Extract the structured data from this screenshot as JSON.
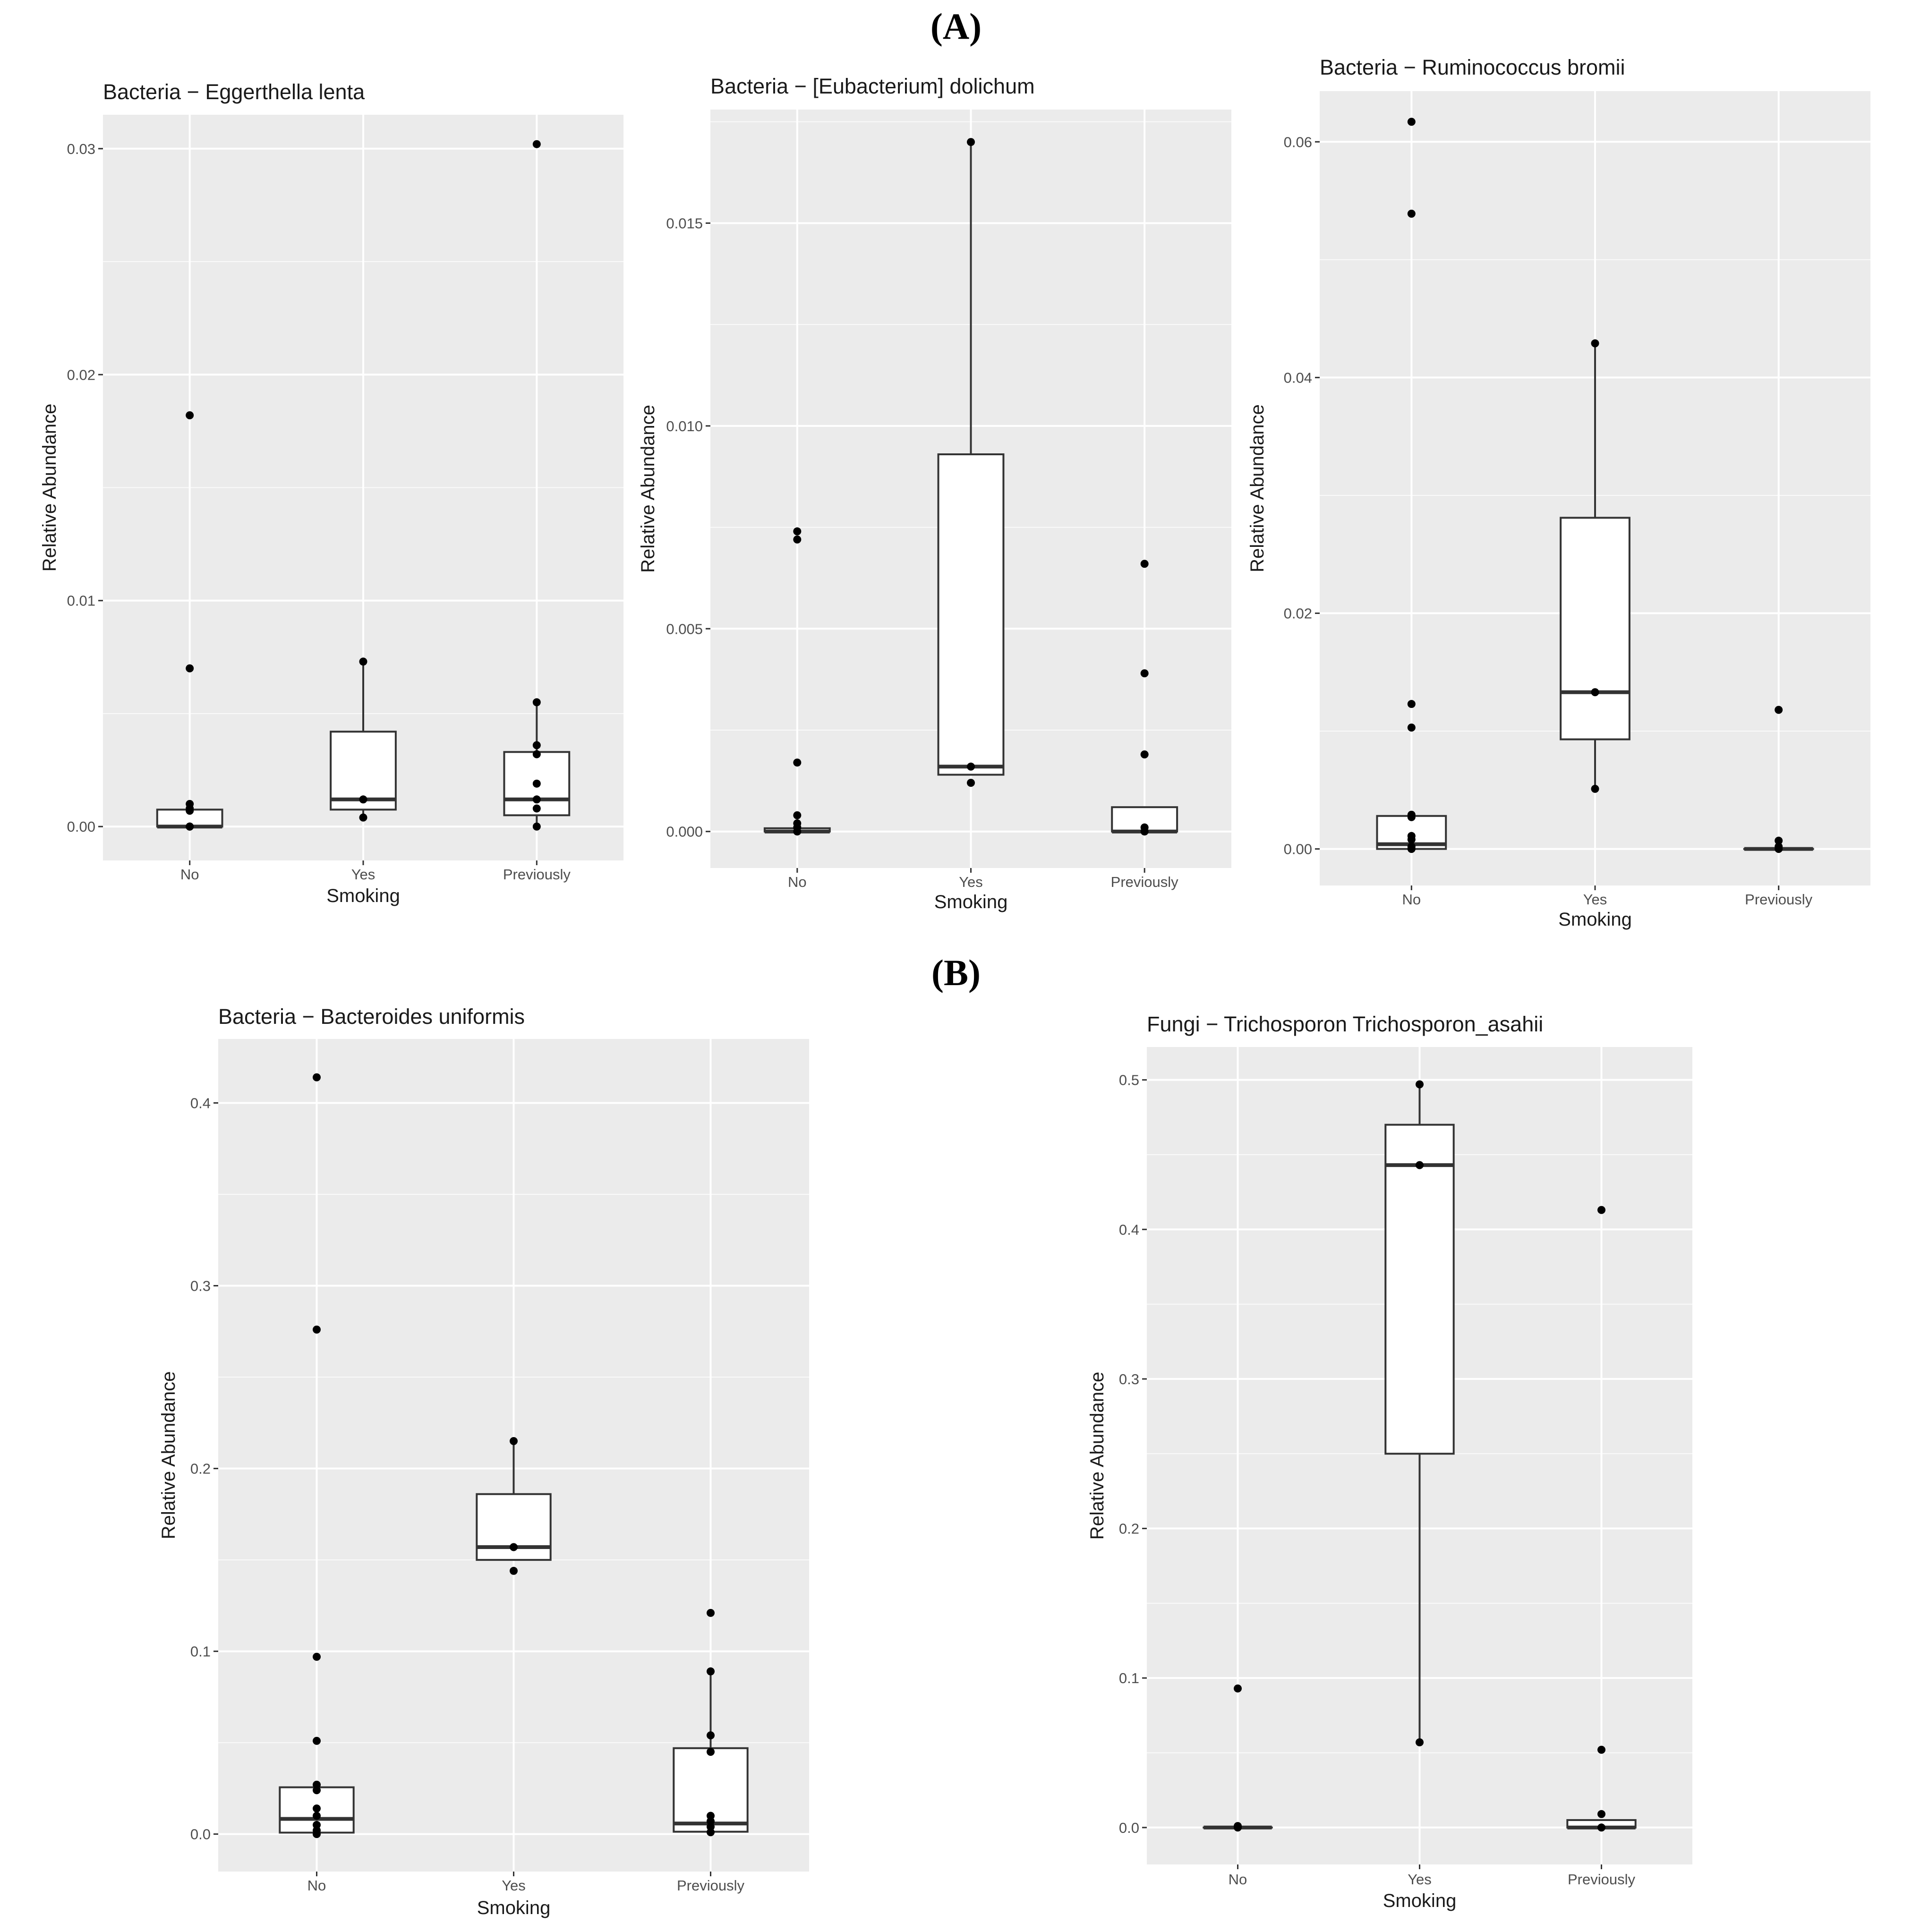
{
  "section_labels": {
    "A": "(A)",
    "B": "(B)"
  },
  "chart_data": [
    {
      "type": "boxplot",
      "title": "Bacteria − Eggerthella lenta",
      "xlabel": "Smoking",
      "ylabel": "Relative Abundance",
      "categories": [
        "No",
        "Yes",
        "Previously"
      ],
      "ylim": [
        -0.0015,
        0.0315
      ],
      "yticks": [
        0.0,
        0.01,
        0.02,
        0.03
      ],
      "ytick_labels": [
        "0.00",
        "0.01",
        "0.02",
        "0.03"
      ],
      "boxes": [
        {
          "category": "No",
          "q1": 0.0,
          "median": 0.0,
          "q3": 0.00075,
          "whisker_low": 0.0,
          "whisker_high": 0.00075
        },
        {
          "category": "Yes",
          "q1": 0.00075,
          "median": 0.0012,
          "q3": 0.0042,
          "whisker_low": 0.0004,
          "whisker_high": 0.0073
        },
        {
          "category": "Previously",
          "q1": 0.0005,
          "median": 0.0012,
          "q3": 0.0033,
          "whisker_low": 0.0,
          "whisker_high": 0.0055
        }
      ],
      "points": [
        {
          "category": "No",
          "values": [
            0.0182,
            0.007,
            0.001,
            0.0008,
            0.0007,
            0.0,
            0.0,
            0.0
          ]
        },
        {
          "category": "Yes",
          "values": [
            0.0073,
            0.0012,
            0.0004
          ]
        },
        {
          "category": "Previously",
          "values": [
            0.0302,
            0.0055,
            0.0036,
            0.0032,
            0.0019,
            0.0012,
            0.0008,
            0.0
          ]
        }
      ]
    },
    {
      "type": "boxplot",
      "title": "Bacteria − [Eubacterium] dolichum",
      "xlabel": "Smoking",
      "ylabel": "Relative Abundance",
      "categories": [
        "No",
        "Yes",
        "Previously"
      ],
      "ylim": [
        -0.0009,
        0.0178
      ],
      "yticks": [
        0.0,
        0.005,
        0.01,
        0.015
      ],
      "ytick_labels": [
        "0.000",
        "0.005",
        "0.010",
        "0.015"
      ],
      "boxes": [
        {
          "category": "No",
          "q1": 0.0,
          "median": 0.0,
          "q3": 8e-05,
          "whisker_low": 0.0,
          "whisker_high": 8e-05
        },
        {
          "category": "Yes",
          "q1": 0.0014,
          "median": 0.0016,
          "q3": 0.0093,
          "whisker_low": 0.0014,
          "whisker_high": 0.017
        },
        {
          "category": "Previously",
          "q1": 0.0,
          "median": 0.0,
          "q3": 0.0006,
          "whisker_low": 0.0,
          "whisker_high": 0.0006
        }
      ],
      "points": [
        {
          "category": "No",
          "values": [
            0.0074,
            0.0072,
            0.0017,
            0.0004,
            0.0002,
            0.0001,
            0.0
          ]
        },
        {
          "category": "Yes",
          "values": [
            0.017,
            0.0016,
            0.0012
          ]
        },
        {
          "category": "Previously",
          "values": [
            0.0066,
            0.0039,
            0.0019,
            0.0001,
            0.0
          ]
        }
      ]
    },
    {
      "type": "boxplot",
      "title": "Bacteria − Ruminococcus bromii",
      "xlabel": "Smoking",
      "ylabel": "Relative Abundance",
      "categories": [
        "No",
        "Yes",
        "Previously"
      ],
      "ylim": [
        -0.0031,
        0.0643
      ],
      "yticks": [
        0.0,
        0.02,
        0.04,
        0.06
      ],
      "ytick_labels": [
        "0.00",
        "0.02",
        "0.04",
        "0.06"
      ],
      "boxes": [
        {
          "category": "No",
          "q1": 0.0,
          "median": 0.0004,
          "q3": 0.0028,
          "whisker_low": 0.0,
          "whisker_high": 0.0028
        },
        {
          "category": "Yes",
          "q1": 0.0093,
          "median": 0.0133,
          "q3": 0.0281,
          "whisker_low": 0.0051,
          "whisker_high": 0.0429
        },
        {
          "category": "Previously",
          "q1": 0.0,
          "median": 0.0,
          "q3": 0.0,
          "whisker_low": 0.0,
          "whisker_high": 0.0
        }
      ],
      "points": [
        {
          "category": "No",
          "values": [
            0.0617,
            0.0539,
            0.0123,
            0.0103,
            0.0029,
            0.0027,
            0.0011,
            0.0008,
            0.0002,
            0.0
          ]
        },
        {
          "category": "Yes",
          "values": [
            0.0429,
            0.0133,
            0.0051
          ]
        },
        {
          "category": "Previously",
          "values": [
            0.0118,
            0.0007,
            0.0002,
            0.0
          ]
        }
      ]
    },
    {
      "type": "boxplot",
      "title": "Bacteria − Bacteroides uniformis",
      "xlabel": "Smoking",
      "ylabel": "Relative Abundance",
      "categories": [
        "No",
        "Yes",
        "Previously"
      ],
      "ylim": [
        -0.0205,
        0.435
      ],
      "yticks": [
        0.0,
        0.1,
        0.2,
        0.3,
        0.4
      ],
      "ytick_labels": [
        "0.0",
        "0.1",
        "0.2",
        "0.3",
        "0.4"
      ],
      "boxes": [
        {
          "category": "No",
          "q1": 0.0008,
          "median": 0.0083,
          "q3": 0.0256,
          "whisker_low": 0.0,
          "whisker_high": 0.0256
        },
        {
          "category": "Yes",
          "q1": 0.15,
          "median": 0.157,
          "q3": 0.186,
          "whisker_low": 0.15,
          "whisker_high": 0.215
        },
        {
          "category": "Previously",
          "q1": 0.0013,
          "median": 0.0058,
          "q3": 0.047,
          "whisker_low": 0.0,
          "whisker_high": 0.089
        }
      ],
      "points": [
        {
          "category": "No",
          "values": [
            0.414,
            0.276,
            0.097,
            0.051,
            0.027,
            0.024,
            0.014,
            0.01,
            0.005,
            0.002,
            0.0
          ]
        },
        {
          "category": "Yes",
          "values": [
            0.215,
            0.157,
            0.144
          ]
        },
        {
          "category": "Previously",
          "values": [
            0.121,
            0.089,
            0.054,
            0.045,
            0.01,
            0.007,
            0.004,
            0.001
          ]
        }
      ]
    },
    {
      "type": "boxplot",
      "title": "Fungi − Trichosporon Trichosporon_asahii",
      "xlabel": "Smoking",
      "ylabel": "Relative Abundance",
      "categories": [
        "No",
        "Yes",
        "Previously"
      ],
      "ylim": [
        -0.0247,
        0.522
      ],
      "yticks": [
        0.0,
        0.1,
        0.2,
        0.3,
        0.4,
        0.5
      ],
      "ytick_labels": [
        "0.0",
        "0.1",
        "0.2",
        "0.3",
        "0.4",
        "0.5"
      ],
      "boxes": [
        {
          "category": "No",
          "q1": 0.0,
          "median": 0.0,
          "q3": 0.0,
          "whisker_low": 0.0,
          "whisker_high": 0.0
        },
        {
          "category": "Yes",
          "q1": 0.25,
          "median": 0.443,
          "q3": 0.47,
          "whisker_low": 0.057,
          "whisker_high": 0.497
        },
        {
          "category": "Previously",
          "q1": 0.0,
          "median": 0.0,
          "q3": 0.005,
          "whisker_low": 0.0,
          "whisker_high": 0.005
        }
      ],
      "points": [
        {
          "category": "No",
          "values": [
            0.093,
            0.001,
            0.0
          ]
        },
        {
          "category": "Yes",
          "values": [
            0.497,
            0.443,
            0.057
          ]
        },
        {
          "category": "Previously",
          "values": [
            0.413,
            0.052,
            0.009,
            0.0
          ]
        }
      ]
    }
  ]
}
